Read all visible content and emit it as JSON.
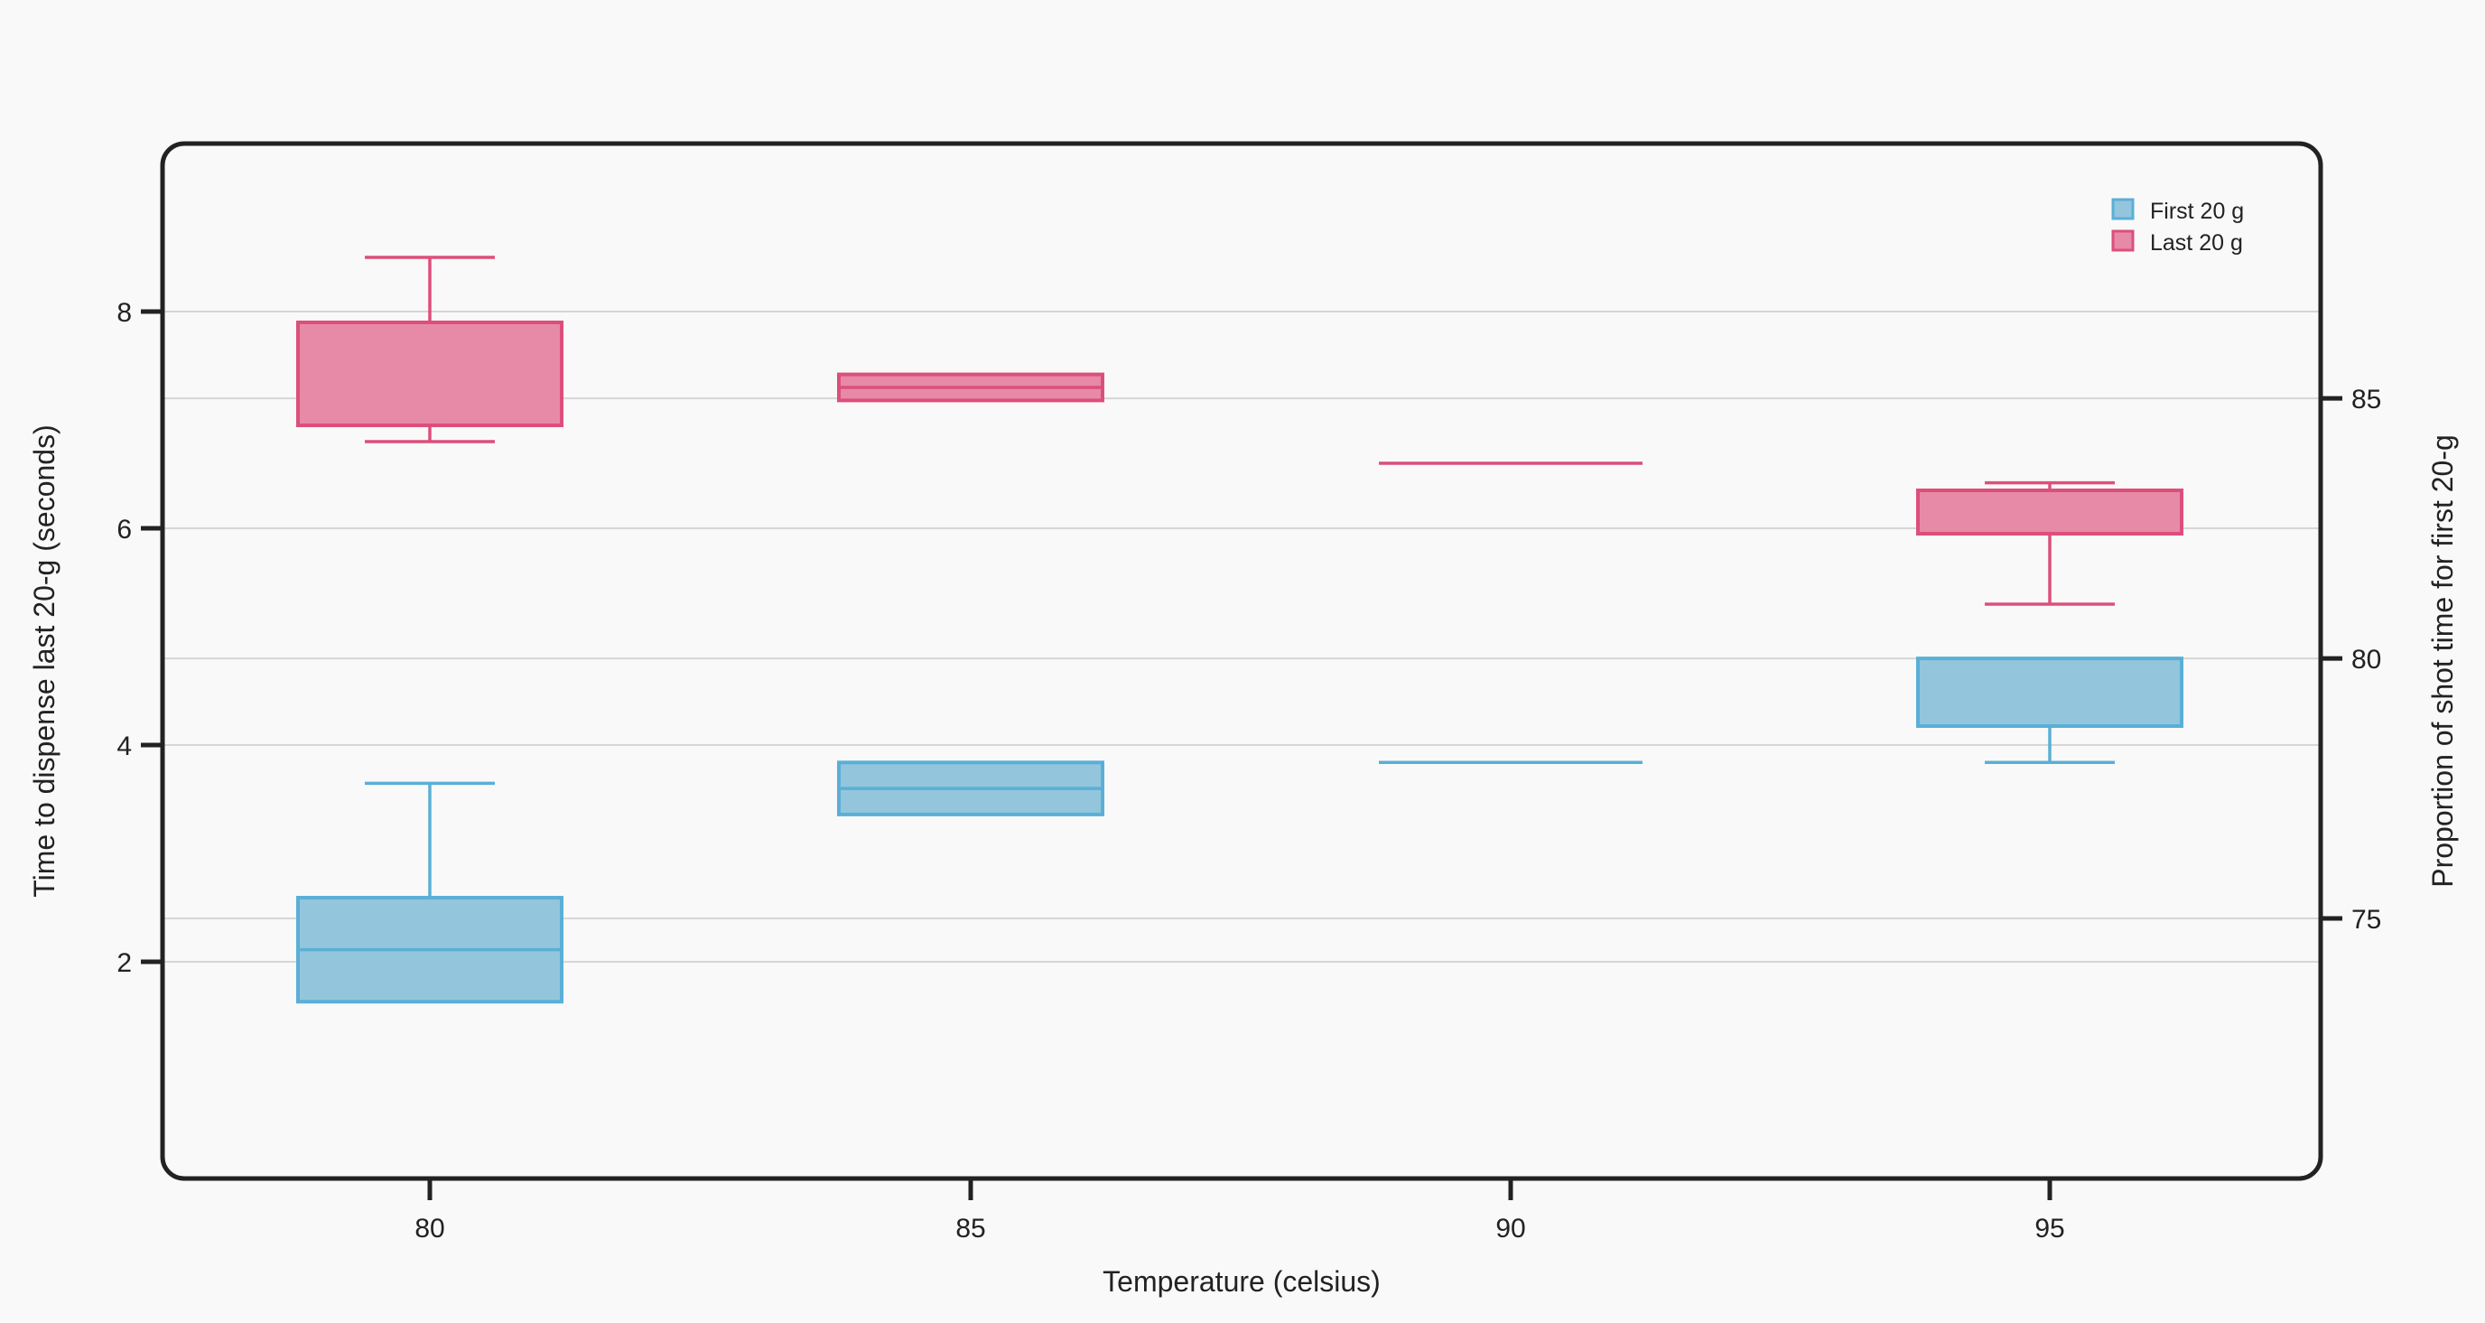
{
  "chart_data": {
    "type": "box",
    "xlabel": "Temperature (celsius)",
    "ylabel_left": "Time to dispense last 20-g (seconds)",
    "ylabel_right": "Proportion of shot time for first 20-g",
    "categories": [
      "80",
      "85",
      "90",
      "95"
    ],
    "y_left_ticks": [
      "2",
      "4",
      "6",
      "8"
    ],
    "y_left_range": [
      0.0,
      9.55
    ],
    "y_right_ticks": [
      "75",
      "80",
      "85"
    ],
    "y_right_range": [
      70.0,
      89.9
    ],
    "grid": true,
    "legend_position": "top-right",
    "series": [
      {
        "name": "First 20 g",
        "axis": "right",
        "color": "#5aafd6",
        "fill": "#93c6dc",
        "boxes": [
          {
            "category": "80",
            "whisker_low": 73.4,
            "q1": 73.4,
            "median": 74.4,
            "q3": 75.4,
            "whisker_high": 77.6
          },
          {
            "category": "85",
            "whisker_low": 77.0,
            "q1": 77.0,
            "median": 77.5,
            "q3": 78.0,
            "whisker_high": 78.0
          },
          {
            "category": "90",
            "whisker_low": 78.0,
            "q1": 78.0,
            "median": 78.0,
            "q3": 78.0,
            "whisker_high": 78.0
          },
          {
            "category": "95",
            "whisker_low": 78.0,
            "q1": 78.7,
            "median": 78.7,
            "q3": 80.0,
            "whisker_high": 80.0
          }
        ]
      },
      {
        "name": "Last 20 g",
        "axis": "left",
        "color": "#dc4f7b",
        "fill": "#e68aa8",
        "boxes": [
          {
            "category": "80",
            "whisker_low": 6.8,
            "q1": 6.95,
            "median": 6.95,
            "q3": 7.9,
            "whisker_high": 8.5
          },
          {
            "category": "85",
            "whisker_low": 7.18,
            "q1": 7.18,
            "median": 7.3,
            "q3": 7.42,
            "whisker_high": 7.42
          },
          {
            "category": "90",
            "whisker_low": 6.6,
            "q1": 6.6,
            "median": 6.6,
            "q3": 6.6,
            "whisker_high": 6.6
          },
          {
            "category": "95",
            "whisker_low": 5.3,
            "q1": 5.95,
            "median": 5.95,
            "q3": 6.35,
            "whisker_high": 6.42
          }
        ]
      }
    ]
  }
}
